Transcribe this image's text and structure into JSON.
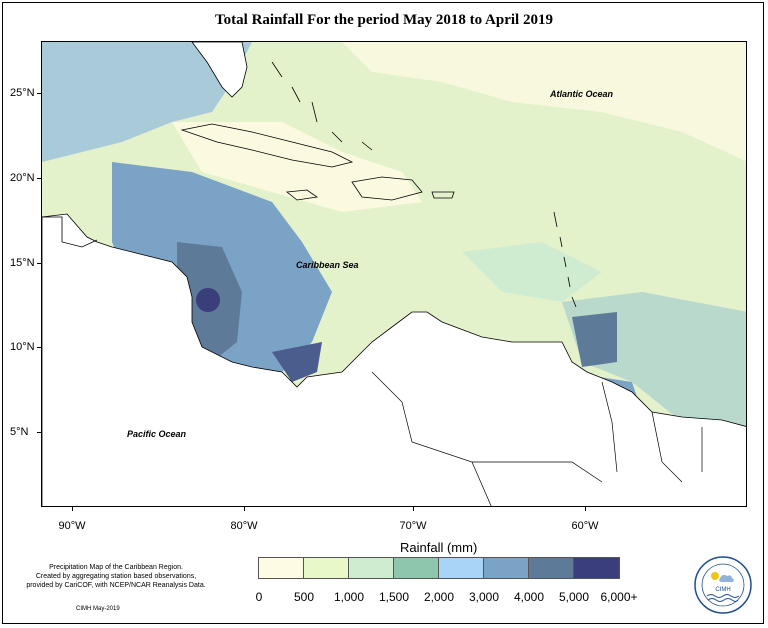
{
  "title": "Total Rainfall For the period May 2018 to April 2019",
  "axes": {
    "lat_labels": [
      "25°N",
      "20°N",
      "15°N",
      "10°N",
      "5°N"
    ],
    "lon_labels": [
      "90°W",
      "80°W",
      "70°W",
      "60°W"
    ]
  },
  "labels": {
    "atlantic": "Atlantic Ocean",
    "caribbean": "Caribbean Sea",
    "pacific": "Pacific Ocean"
  },
  "legend": {
    "title": "Rainfall (mm)",
    "ticks": [
      "0",
      "500",
      "1,000",
      "1,500",
      "2,000",
      "3,000",
      "4,000",
      "5,000",
      "6,000+"
    ],
    "colors": [
      "#fdfbe3",
      "#e8f8c9",
      "#cfecd0",
      "#8ec6ad",
      "#a9d3f7",
      "#7ba3c6",
      "#5e7a99",
      "#3a3e7a"
    ]
  },
  "footnote": {
    "line1": "Precipitation Map of the Caribbean Region.",
    "line2": "Created by aggregating station based observations,",
    "line3": "provided by CariCOF, with NCEP/NCAR Reanalysis Data."
  },
  "credit": "CIMH May-2019",
  "logo": {
    "text": "CIMH"
  }
}
